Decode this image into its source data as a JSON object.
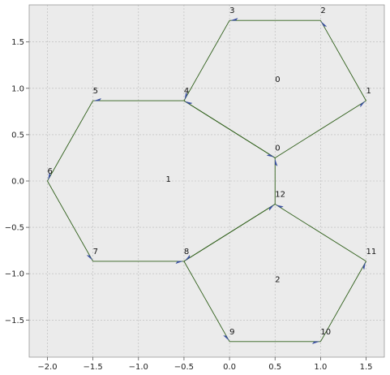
{
  "chart_data": {
    "type": "graph",
    "title": "",
    "xlabel": "",
    "ylabel": "",
    "xlim": [
      -2.2,
      1.7
    ],
    "ylim": [
      -1.9,
      1.9
    ],
    "grid": true,
    "x_ticks": [
      {
        "value": -2.0,
        "label": "−2.0"
      },
      {
        "value": -1.5,
        "label": "−1.5"
      },
      {
        "value": -1.0,
        "label": "−1.0"
      },
      {
        "value": -0.5,
        "label": "−0.5"
      },
      {
        "value": 0.0,
        "label": "0.0"
      },
      {
        "value": 0.5,
        "label": "0.5"
      },
      {
        "value": 1.0,
        "label": "1.0"
      },
      {
        "value": 1.5,
        "label": "1.5"
      }
    ],
    "y_ticks": [
      {
        "value": 1.5,
        "label": "1.5"
      },
      {
        "value": 1.0,
        "label": "1.0"
      },
      {
        "value": 0.5,
        "label": "0.5"
      },
      {
        "value": 0.0,
        "label": "0.0"
      },
      {
        "value": -0.5,
        "label": "−0.5"
      },
      {
        "value": -1.0,
        "label": "−1.0"
      },
      {
        "value": -1.5,
        "label": "−1.5"
      }
    ],
    "vertices": [
      {
        "id": "v0",
        "label": "0",
        "x": 0.5,
        "y": 0.25
      },
      {
        "id": "v1",
        "label": "1",
        "x": 1.5,
        "y": 0.866
      },
      {
        "id": "v2",
        "label": "2",
        "x": 1.0,
        "y": 1.732
      },
      {
        "id": "v3",
        "label": "3",
        "x": 0.0,
        "y": 1.732
      },
      {
        "id": "v4",
        "label": "4",
        "x": -0.5,
        "y": 0.866
      },
      {
        "id": "v5",
        "label": "5",
        "x": -1.5,
        "y": 0.866
      },
      {
        "id": "v6",
        "label": "6",
        "x": -2.0,
        "y": 0.0
      },
      {
        "id": "v7",
        "label": "7",
        "x": -1.5,
        "y": -0.866
      },
      {
        "id": "v8",
        "label": "8",
        "x": -0.5,
        "y": -0.866
      },
      {
        "id": "v9",
        "label": "9",
        "x": 0.0,
        "y": -1.732
      },
      {
        "id": "v10",
        "label": "10",
        "x": 1.0,
        "y": -1.732
      },
      {
        "id": "v11",
        "label": "11",
        "x": 1.5,
        "y": -0.866
      },
      {
        "id": "v12",
        "label": "12",
        "x": 0.5,
        "y": -0.25
      }
    ],
    "edges": [
      {
        "from": "v0",
        "to": "v1"
      },
      {
        "from": "v1",
        "to": "v2"
      },
      {
        "from": "v2",
        "to": "v3"
      },
      {
        "from": "v3",
        "to": "v4"
      },
      {
        "from": "v4",
        "to": "v0"
      },
      {
        "from": "v0",
        "to": "v4"
      },
      {
        "from": "v4",
        "to": "v5"
      },
      {
        "from": "v5",
        "to": "v6"
      },
      {
        "from": "v6",
        "to": "v7"
      },
      {
        "from": "v7",
        "to": "v8"
      },
      {
        "from": "v8",
        "to": "v12"
      },
      {
        "from": "v12",
        "to": "v0"
      },
      {
        "from": "v12",
        "to": "v8"
      },
      {
        "from": "v8",
        "to": "v9"
      },
      {
        "from": "v9",
        "to": "v10"
      },
      {
        "from": "v10",
        "to": "v11"
      },
      {
        "from": "v11",
        "to": "v12"
      }
    ],
    "faces": [
      {
        "label": "0",
        "x": 0.5,
        "y": 1.1
      },
      {
        "label": "1",
        "x": -0.7,
        "y": 0.02
      },
      {
        "label": "2",
        "x": 0.5,
        "y": -1.06
      }
    ],
    "colors": {
      "background": "#ebebeb",
      "grid": "#b8b8b8",
      "edge": "#2f5f1a",
      "arrow": "#3a4fa0",
      "frame": "#999999"
    }
  }
}
